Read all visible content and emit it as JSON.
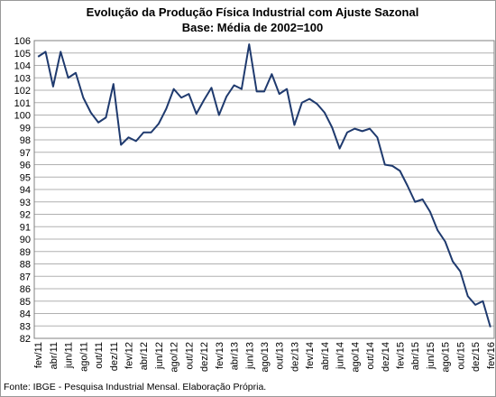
{
  "chart_data": {
    "type": "line",
    "title": "Evolução da Produção Física Industrial com Ajuste Sazonal",
    "subtitle": "Base: Média de 2002=100",
    "source": "Fonte: IBGE - Pesquisa Industrial Mensal. Elaboração Própria.",
    "categories": [
      "fev/11",
      null,
      "abr/11",
      null,
      "jun/11",
      null,
      "ago/11",
      null,
      "out/11",
      null,
      "dez/11",
      null,
      "fev/12",
      null,
      "abr/12",
      null,
      "jun/12",
      null,
      "ago/12",
      null,
      "out/12",
      null,
      "dez/12",
      null,
      "fev/13",
      null,
      "abr/13",
      null,
      "jun/13",
      null,
      "ago/13",
      null,
      "out/13",
      null,
      "dez/13",
      null,
      "fev/14",
      null,
      "abr/14",
      null,
      "jun/14",
      null,
      "ago/14",
      null,
      "out/14",
      null,
      "dez/14",
      null,
      "fev/15",
      null,
      "abr/15",
      null,
      "jun/15",
      null,
      "ago/15",
      null,
      "out/15",
      null,
      "dez/15",
      null,
      "fev/16"
    ],
    "series": [
      {
        "color": "#1f3a6e",
        "values": [
          104.7,
          105.1,
          102.3,
          105.1,
          103.0,
          103.4,
          101.4,
          100.2,
          99.4,
          99.8,
          102.5,
          97.6,
          98.2,
          97.9,
          98.6,
          98.6,
          99.3,
          100.5,
          102.1,
          101.4,
          101.7,
          100.1,
          101.2,
          102.2,
          100.0,
          101.5,
          102.4,
          102.1,
          105.7,
          101.9,
          101.9,
          103.3,
          101.7,
          102.1,
          99.2,
          101.0,
          101.3,
          100.9,
          100.2,
          99.0,
          97.3,
          98.6,
          98.9,
          98.7,
          98.9,
          98.2,
          96.0,
          95.9,
          95.5,
          94.3,
          93.0,
          93.2,
          92.2,
          90.7,
          89.8,
          88.2,
          87.4,
          85.4,
          84.7,
          85.0,
          82.9
        ]
      }
    ],
    "ylim": [
      82,
      106
    ],
    "yticks": [
      82,
      83,
      84,
      85,
      86,
      87,
      88,
      89,
      90,
      91,
      92,
      93,
      94,
      95,
      96,
      97,
      98,
      99,
      100,
      101,
      102,
      103,
      104,
      105,
      106
    ],
    "grid": true
  }
}
